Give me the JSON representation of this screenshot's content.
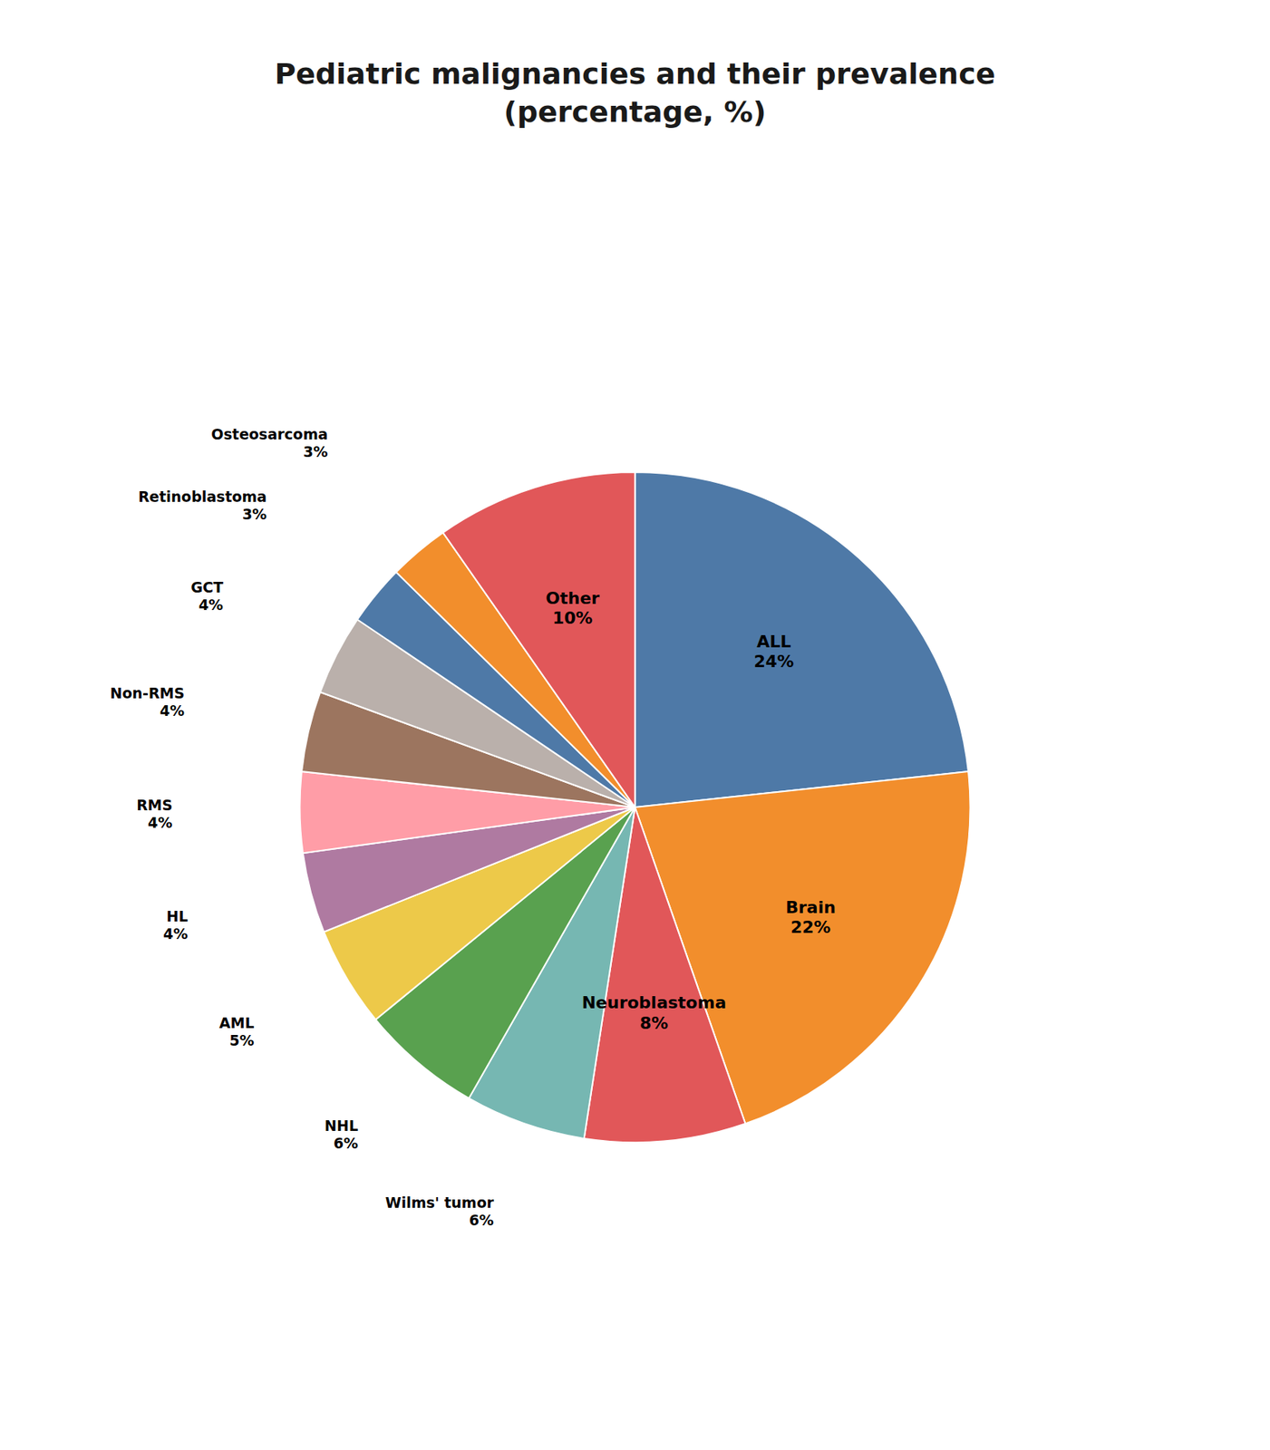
{
  "chart_data": {
    "type": "pie",
    "title": "Pediatric malignancies and their prevalence\n(percentage, %)",
    "categories": [
      "ALL",
      "Brain",
      "Neuroblastoma",
      "Wilms' tumor",
      "NHL",
      "AML",
      "HL",
      "RMS",
      "Non-RMS",
      "GCT",
      "Retinoblastoma",
      "Osteosarcoma",
      "Other"
    ],
    "values": [
      24,
      22,
      8,
      6,
      6,
      5,
      4,
      4,
      4,
      4,
      3,
      3,
      10
    ],
    "value_labels": [
      "24%",
      "22%",
      "8%",
      "6%",
      "6%",
      "5%",
      "4%",
      "4%",
      "4%",
      "4%",
      "3%",
      "3%",
      "10%"
    ],
    "data_labels": true
  }
}
